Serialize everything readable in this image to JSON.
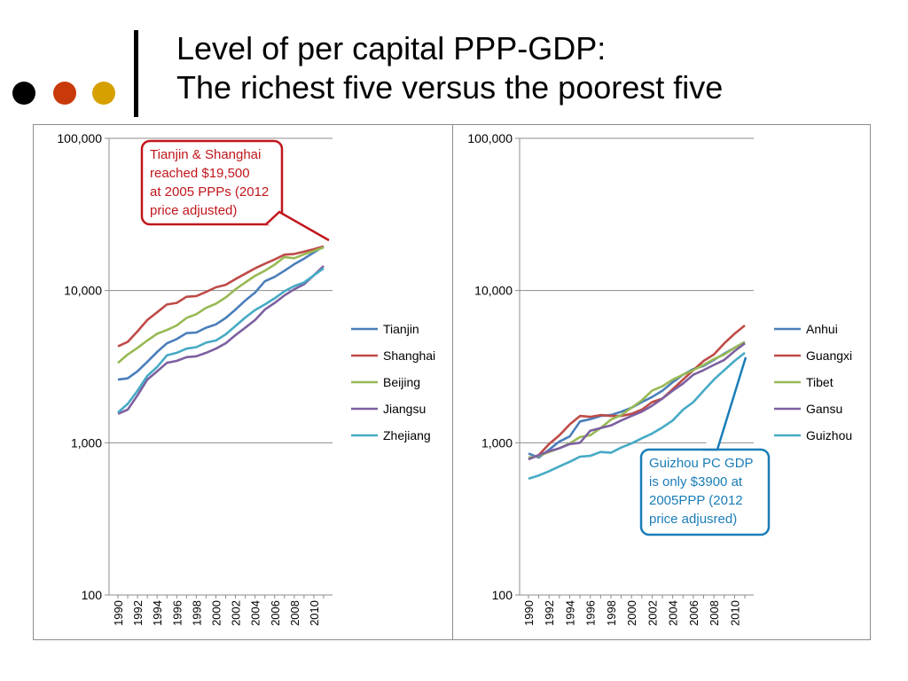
{
  "slide": {
    "title_line1": "Level of per capital PPP-GDP:",
    "title_line2": "The richest five versus the poorest five",
    "dot_colors": [
      "#000000",
      "#c83a0a",
      "#d6a000"
    ]
  },
  "chart_data": [
    {
      "type": "line",
      "scale": "log",
      "ylim": [
        100,
        100000
      ],
      "yticks": [
        100,
        1000,
        10000,
        100000
      ],
      "ytick_labels": [
        "100",
        "1,000",
        "10,000",
        "100,000"
      ],
      "x": [
        1990,
        1991,
        1992,
        1993,
        1994,
        1995,
        1996,
        1997,
        1998,
        1999,
        2000,
        2001,
        2002,
        2003,
        2004,
        2005,
        2006,
        2007,
        2008,
        2009,
        2010,
        2011
      ],
      "xtick_labels": [
        "1990",
        "1992",
        "1994",
        "1996",
        "1998",
        "2000",
        "2002",
        "2004",
        "2006",
        "2008",
        "2010"
      ],
      "grid": "horizontal",
      "legend": "right",
      "series": [
        {
          "name": "Tianjin",
          "color": "#4a7ebb",
          "values": [
            2600,
            2650,
            2950,
            3400,
            3950,
            4500,
            4800,
            5250,
            5300,
            5700,
            6000,
            6600,
            7500,
            8600,
            9700,
            11500,
            12300,
            13500,
            14900,
            16200,
            17800,
            19500
          ]
        },
        {
          "name": "Shanghai",
          "color": "#be4b48",
          "values": [
            4300,
            4600,
            5400,
            6400,
            7200,
            8100,
            8300,
            9100,
            9200,
            9800,
            10500,
            10900,
            11900,
            12900,
            14000,
            15000,
            16000,
            17200,
            17400,
            18000,
            18700,
            19500
          ]
        },
        {
          "name": "Beijing",
          "color": "#98b954",
          "values": [
            3350,
            3800,
            4200,
            4700,
            5200,
            5500,
            5900,
            6600,
            7000,
            7700,
            8200,
            9000,
            10200,
            11300,
            12500,
            13500,
            14800,
            16600,
            16300,
            17300,
            18200,
            19200
          ]
        },
        {
          "name": "Jiangsu",
          "color": "#7d60a0",
          "values": [
            1550,
            1650,
            2050,
            2600,
            2950,
            3350,
            3450,
            3650,
            3700,
            3900,
            4150,
            4500,
            5100,
            5700,
            6400,
            7500,
            8300,
            9300,
            10200,
            11000,
            12600,
            14500
          ]
        },
        {
          "name": "Zhejiang",
          "color": "#46aac5",
          "values": [
            1580,
            1800,
            2200,
            2750,
            3150,
            3750,
            3900,
            4150,
            4250,
            4550,
            4700,
            5150,
            5850,
            6650,
            7450,
            8100,
            8900,
            9900,
            10700,
            11300,
            12600,
            14000
          ]
        }
      ],
      "annotation": {
        "lines": [
          "Tianjin & Shanghai",
          "reached $19,500",
          "at 2005 PPPs (2012",
          "price adjusted)"
        ],
        "color": "#c0161b",
        "target_x": 2011,
        "target_value": 19500
      }
    },
    {
      "type": "line",
      "scale": "log",
      "ylim": [
        100,
        100000
      ],
      "yticks": [
        100,
        1000,
        10000,
        100000
      ],
      "ytick_labels": [
        "100",
        "1,000",
        "10,000",
        "100,000"
      ],
      "x": [
        1990,
        1991,
        1992,
        1993,
        1994,
        1995,
        1996,
        1997,
        1998,
        1999,
        2000,
        2001,
        2002,
        2003,
        2004,
        2005,
        2006,
        2007,
        2008,
        2009,
        2010,
        2011
      ],
      "xtick_labels": [
        "1990",
        "1992",
        "1994",
        "1996",
        "1998",
        "2000",
        "2002",
        "2004",
        "2006",
        "2008",
        "2010"
      ],
      "grid": "horizontal",
      "legend": "right",
      "series": [
        {
          "name": "Anhui",
          "color": "#4a7ebb",
          "values": [
            850,
            800,
            900,
            1020,
            1100,
            1380,
            1430,
            1500,
            1520,
            1600,
            1700,
            1850,
            2000,
            2200,
            2500,
            2800,
            3050,
            3200,
            3500,
            3850,
            4200,
            4600
          ]
        },
        {
          "name": "Guangxi",
          "color": "#be4b48",
          "values": [
            780,
            830,
            980,
            1120,
            1320,
            1500,
            1480,
            1520,
            1500,
            1500,
            1550,
            1650,
            1850,
            1950,
            2250,
            2600,
            3000,
            3450,
            3800,
            4500,
            5200,
            5900
          ]
        },
        {
          "name": "Tibet",
          "color": "#98b954",
          "values": [
            800,
            820,
            870,
            920,
            990,
            1090,
            1120,
            1250,
            1420,
            1520,
            1700,
            1900,
            2200,
            2350,
            2600,
            2800,
            3000,
            3250,
            3550,
            3800,
            4200,
            4600
          ]
        },
        {
          "name": "Gansu",
          "color": "#7d60a0",
          "values": [
            780,
            830,
            880,
            920,
            980,
            1000,
            1200,
            1250,
            1300,
            1400,
            1500,
            1600,
            1750,
            1950,
            2200,
            2450,
            2800,
            3000,
            3250,
            3500,
            4000,
            4500
          ]
        },
        {
          "name": "Guizhou",
          "color": "#46aac5",
          "values": [
            580,
            610,
            650,
            700,
            750,
            810,
            820,
            870,
            860,
            930,
            990,
            1070,
            1150,
            1260,
            1400,
            1650,
            1850,
            2200,
            2600,
            3000,
            3450,
            3900
          ]
        }
      ],
      "annotation": {
        "lines": [
          "Guizhou PC GDP",
          "is only $3900 at",
          "2005PPP (2012",
          "price adjusred)"
        ],
        "color": "#1a7db8",
        "target_x": 2011,
        "target_value": 3700
      }
    }
  ]
}
